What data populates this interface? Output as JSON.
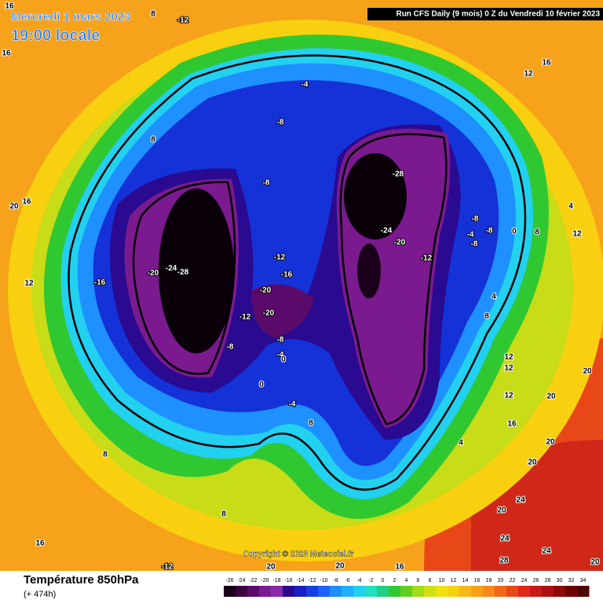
{
  "header": {
    "date": "Mercredi 1 mars 2023",
    "time": "19:00 locale",
    "run": "Run CFS Daily (9 mois) 0 Z du Vendredi 10 février 2023"
  },
  "copyright": "Copyright © 2023 Meteociel.fr",
  "footer": {
    "title": "Température 850hPa",
    "lead": "(+ 474h)"
  },
  "legend": {
    "labels": [
      -26,
      -24,
      -22,
      -20,
      -18,
      -16,
      -14,
      -12,
      -10,
      -8,
      -6,
      -4,
      -2,
      0,
      2,
      4,
      6,
      8,
      10,
      12,
      14,
      16,
      18,
      20,
      22,
      24,
      26,
      28,
      30,
      32,
      34
    ],
    "colors": [
      "#1a001a",
      "#3a0040",
      "#5a0a6a",
      "#7a1a8e",
      "#8a2aa8",
      "#2a0a90",
      "#1a20c0",
      "#1440e0",
      "#1e60ff",
      "#1e90ff",
      "#20b0ff",
      "#22d0f0",
      "#20e0c0",
      "#20d080",
      "#30c830",
      "#60d020",
      "#a0dc18",
      "#d0e010",
      "#f0e010",
      "#f8d010",
      "#f8b818",
      "#f8a018",
      "#f88818",
      "#f06818",
      "#e84818",
      "#e02818",
      "#c81818",
      "#b01010",
      "#900808",
      "#700000",
      "#500000"
    ]
  },
  "map": {
    "contour_labels": [
      "16",
      "8",
      "-12",
      "16",
      "-4",
      "-8",
      "8",
      "-28",
      "-8",
      "20",
      "16",
      "-8",
      "-4",
      "-8",
      "0",
      "8",
      "4",
      "12",
      "-8",
      "-24",
      "-20",
      "-12",
      "-12",
      "-24",
      "-28",
      "-20",
      "-16",
      "-16",
      "12",
      "-20",
      "-12",
      "-20",
      "-8",
      "-8",
      "-4",
      "0",
      "4",
      "8",
      "12",
      "20",
      "20",
      "12",
      "0",
      "-4",
      "8",
      "8",
      "16",
      "20",
      "20",
      "24",
      "20",
      "8",
      "16",
      "24",
      "24",
      "28",
      "20",
      "20",
      "-12",
      "20",
      "16",
      "12",
      "16",
      "4",
      "12"
    ]
  }
}
